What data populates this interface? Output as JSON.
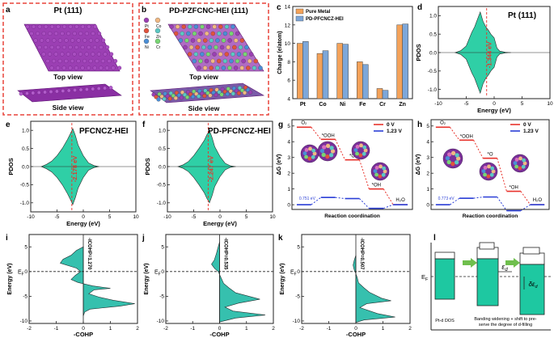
{
  "panels": {
    "a": {
      "letter": "a",
      "title": "Pt (111)",
      "view_top": "Top view",
      "view_side": "Side view",
      "colors": {
        "dash_border": "#e8443a",
        "atom": "#9b3fb3",
        "atom_dark": "#5e1673"
      }
    },
    "b": {
      "letter": "b",
      "title": "PD-PZFCNC-HEI (111)",
      "view_top": "Top view",
      "view_side": "Side view",
      "legend": [
        {
          "el": "Pt",
          "color": "#9b3fb3"
        },
        {
          "el": "Co",
          "color": "#f0b882"
        },
        {
          "el": "Fe",
          "color": "#e0533d"
        },
        {
          "el": "Zn",
          "color": "#5bc8c3"
        },
        {
          "el": "Ni",
          "color": "#4a8ed6"
        },
        {
          "el": "Cr",
          "color": "#78d673"
        }
      ]
    },
    "c": {
      "letter": "c",
      "chart_data": {
        "type": "bar",
        "categories": [
          "Pt",
          "Co",
          "Ni",
          "Fe",
          "Cr",
          "Zn"
        ],
        "series": [
          {
            "name": "Pure Metal",
            "values": [
              10.0,
              8.9,
              10.0,
              8.0,
              5.1,
              12.0
            ],
            "color": "#f4a259"
          },
          {
            "name": "PD-PFCNCZ-HEI",
            "values": [
              10.2,
              9.2,
              9.9,
              7.7,
              4.9,
              12.1
            ],
            "color": "#7da7d9"
          }
        ],
        "ylabel": "Charge (e/atom)",
        "ylim": [
          4,
          14
        ],
        "yticks": [
          "4",
          "6",
          "8",
          "10",
          "12",
          "14"
        ]
      }
    },
    "d": {
      "letter": "d",
      "chart_data": {
        "type": "area",
        "title": "Pt (111)",
        "xlabel": "Energy (eV)",
        "ylabel": "PDOS",
        "xlim": [
          -10,
          10
        ],
        "ylim": [
          -1.25,
          1.25
        ],
        "xticks": [
          "-10",
          "-5",
          "0",
          "5",
          "10"
        ],
        "yticks": [
          "1.0",
          "0.5",
          "0.0",
          "-0.5",
          "-1.0"
        ],
        "d_band_center": -1.344,
        "annotation": "-1.344 eV",
        "profile": [
          [
            -7,
            0
          ],
          [
            -6,
            0.05
          ],
          [
            -5,
            0.18
          ],
          [
            -4,
            0.55
          ],
          [
            -3.5,
            0.7
          ],
          [
            -3,
            0.9
          ],
          [
            -2.5,
            1.1
          ],
          [
            -2,
            0.85
          ],
          [
            -1.5,
            0.7
          ],
          [
            -1,
            0.6
          ],
          [
            -0.6,
            0.5
          ],
          [
            0,
            0.4
          ],
          [
            0.5,
            0.12
          ],
          [
            1,
            0.04
          ],
          [
            2,
            0.01
          ],
          [
            3,
            0
          ]
        ]
      }
    },
    "e": {
      "letter": "e",
      "chart_data": {
        "type": "area",
        "title": "PFCNCZ-HEI",
        "xlabel": "Energy (eV)",
        "ylabel": "PDOS",
        "xlim": [
          -10,
          10
        ],
        "ylim": [
          -1.25,
          1.25
        ],
        "xticks": [
          "-10",
          "-5",
          "0",
          "5",
          "10"
        ],
        "yticks": [
          "1.0",
          "0.5",
          "0.0",
          "-0.5",
          "-1.0"
        ],
        "d_band_center": -2.178,
        "annotation": "-2.178 eV",
        "profile": [
          [
            -8,
            0
          ],
          [
            -7,
            0.06
          ],
          [
            -6,
            0.15
          ],
          [
            -5,
            0.3
          ],
          [
            -4,
            0.5
          ],
          [
            -3,
            0.75
          ],
          [
            -2.5,
            0.9
          ],
          [
            -2,
            1.05
          ],
          [
            -1.5,
            0.85
          ],
          [
            -1,
            0.6
          ],
          [
            0,
            0.3
          ],
          [
            1,
            0.1
          ],
          [
            2,
            0.03
          ],
          [
            3,
            0
          ]
        ]
      }
    },
    "f": {
      "letter": "f",
      "chart_data": {
        "type": "area",
        "title": "PD-PFCNCZ-HEI",
        "xlabel": "Energy (eV)",
        "ylabel": "PDOS",
        "xlim": [
          -10,
          10
        ],
        "ylim": [
          -1.25,
          1.25
        ],
        "xticks": [
          "-10",
          "-5",
          "0",
          "5",
          "10"
        ],
        "yticks": [
          "1.0",
          "0.5",
          "0.0",
          "-0.5",
          "-1.0"
        ],
        "d_band_center": -2.247,
        "annotation": "-2.247 eV",
        "profile": [
          [
            -8,
            0
          ],
          [
            -7,
            0.05
          ],
          [
            -6,
            0.14
          ],
          [
            -5,
            0.3
          ],
          [
            -4,
            0.5
          ],
          [
            -3,
            0.72
          ],
          [
            -2.5,
            0.88
          ],
          [
            -2,
            1.0
          ],
          [
            -1.5,
            0.8
          ],
          [
            -1,
            0.55
          ],
          [
            0,
            0.28
          ],
          [
            1,
            0.09
          ],
          [
            2,
            0.02
          ],
          [
            3,
            0
          ]
        ]
      }
    },
    "g": {
      "letter": "g",
      "chart_data": {
        "type": "line",
        "xlabel": "Reaction coordination",
        "ylabel": "ΔG (eV)",
        "ylim": [
          -0.3,
          5.4
        ],
        "yticks": [
          "0",
          "1",
          "2",
          "3",
          "4",
          "5"
        ],
        "legend": [
          "0 V",
          "1.23 V"
        ],
        "steps": [
          "O₂",
          "*OOH",
          "*O",
          "*OH",
          "H₂O"
        ],
        "series": [
          {
            "name": "0 V",
            "color": "#e8332c",
            "values": [
              4.92,
              4.15,
              2.85,
              1.0,
              0.0
            ]
          },
          {
            "name": "1.23 V",
            "color": "#2b3fd6",
            "values": [
              0.0,
              0.46,
              0.39,
              -0.23,
              0.0
            ]
          }
        ],
        "annotation": "0.751 eV"
      }
    },
    "h": {
      "letter": "h",
      "chart_data": {
        "type": "line",
        "xlabel": "Reaction coordination",
        "ylabel": "ΔG (eV)",
        "ylim": [
          -0.3,
          5.4
        ],
        "yticks": [
          "0",
          "1",
          "2",
          "3",
          "4",
          "5"
        ],
        "legend": [
          "0 V",
          "1.23 V"
        ],
        "steps": [
          "O₂",
          "*OOH",
          "*O",
          "*OH",
          "H₂O"
        ],
        "series": [
          {
            "name": "0 V",
            "color": "#e8332c",
            "values": [
              4.92,
              4.1,
              2.95,
              0.85,
              0.0
            ]
          },
          {
            "name": "1.23 V",
            "color": "#2b3fd6",
            "values": [
              0.0,
              0.41,
              0.49,
              -0.38,
              0.0
            ]
          }
        ],
        "annotation": "0.773 eV"
      }
    },
    "i": {
      "letter": "i",
      "chart_data": {
        "type": "area",
        "orientation": "horizontal",
        "xlabel": "-COHP",
        "ylabel": "Energy (eV)",
        "xlim": [
          -2,
          2
        ],
        "ylim": [
          -10.5,
          7.5
        ],
        "xticks": [
          "-2",
          "-1",
          "0",
          "1",
          "2"
        ],
        "yticks": [
          "5",
          "0",
          "-5",
          "-10"
        ],
        "fermi_label": "E",
        "fermi_sub": "F",
        "annotation": "-ICOHP=1.270",
        "profile": [
          [
            5,
            0
          ],
          [
            4.3,
            -0.25
          ],
          [
            3.3,
            -0.45
          ],
          [
            2.5,
            -0.75
          ],
          [
            1.7,
            -0.85
          ],
          [
            0.7,
            -0.25
          ],
          [
            0,
            -0.1
          ],
          [
            -0.8,
            -0.3
          ],
          [
            -1.6,
            -0.45
          ],
          [
            -2.2,
            -0.2
          ],
          [
            -2.9,
            0.35
          ],
          [
            -3.4,
            1.0
          ],
          [
            -3.7,
            0.4
          ],
          [
            -4.5,
            0.2
          ],
          [
            -5.2,
            0.6
          ],
          [
            -5.8,
            1.1
          ],
          [
            -6.5,
            1.9
          ],
          [
            -7.0,
            1.35
          ],
          [
            -7.6,
            0.25
          ],
          [
            -8.2,
            0.05
          ],
          [
            -9,
            0
          ]
        ]
      }
    },
    "j": {
      "letter": "j",
      "chart_data": {
        "type": "area",
        "orientation": "horizontal",
        "xlabel": "-COHP",
        "ylabel": "Energy (eV)",
        "xlim": [
          -2,
          2
        ],
        "ylim": [
          -10.5,
          7.5
        ],
        "xticks": [
          "-2",
          "-1",
          "0",
          "1",
          "2"
        ],
        "yticks": [
          "5",
          "0",
          "-5",
          "-10"
        ],
        "fermi_label": "E",
        "fermi_sub": "F",
        "annotation": "-ICOHP=0.535",
        "profile": [
          [
            6,
            0
          ],
          [
            5,
            -0.05
          ],
          [
            3.6,
            -0.12
          ],
          [
            2.3,
            -0.2
          ],
          [
            1.5,
            -0.3
          ],
          [
            0.6,
            -0.18
          ],
          [
            0,
            -0.05
          ],
          [
            -1.2,
            0.05
          ],
          [
            -2.4,
            0.15
          ],
          [
            -3.3,
            0.35
          ],
          [
            -4.3,
            0.6
          ],
          [
            -5.6,
            1.5
          ],
          [
            -6.4,
            0.7
          ],
          [
            -7.2,
            0.2
          ],
          [
            -8.0,
            0.5
          ],
          [
            -8.8,
            1.7
          ],
          [
            -9.4,
            0.6
          ],
          [
            -10.2,
            0
          ]
        ]
      }
    },
    "k": {
      "letter": "k",
      "chart_data": {
        "type": "area",
        "orientation": "horizontal",
        "xlabel": "-COHP",
        "ylabel": "Energy (eV)",
        "xlim": [
          -2,
          2
        ],
        "ylim": [
          -10.5,
          7.5
        ],
        "xticks": [
          "-2",
          "-1",
          "0",
          "1",
          "2"
        ],
        "yticks": [
          "5",
          "0",
          "-5",
          "-10"
        ],
        "fermi_label": "E",
        "fermi_sub": "F",
        "annotation": "-ICOHP=0.507",
        "profile": [
          [
            3.3,
            0
          ],
          [
            2.3,
            -0.06
          ],
          [
            1.3,
            -0.1
          ],
          [
            0.5,
            -0.07
          ],
          [
            0,
            -0.03
          ],
          [
            -1.2,
            0.05
          ],
          [
            -2.3,
            0.1
          ],
          [
            -3.3,
            0.3
          ],
          [
            -4.2,
            0.5
          ],
          [
            -5.4,
            0.95
          ],
          [
            -5.9,
            1.3
          ],
          [
            -6.5,
            0.4
          ],
          [
            -7.3,
            0.15
          ],
          [
            -8.5,
            0.8
          ],
          [
            -9.2,
            1.45
          ],
          [
            -9.8,
            0.3
          ],
          [
            -10.3,
            0
          ]
        ]
      }
    },
    "l": {
      "letter": "l",
      "fermi_label": "E",
      "fermi_sub": "F",
      "ed_label": "ε",
      "ed_sub": "d",
      "ded_label": "δε",
      "ded_sub": "d",
      "caption_1": "Pt-d DOS",
      "caption_2": "Banding widening + shift to pre-",
      "caption_3": "serve the degree of d-filling",
      "colors": {
        "fill": "#1ec8a1",
        "arrow": "#6fbf4d"
      }
    }
  },
  "colors": {
    "pdos_fill": "#2fcfa6",
    "cohp_fill": "#36c0ae",
    "outline": "#222222",
    "dcenter_line": "#e8332c",
    "annotation": "#e8332c",
    "ball_pink": "#d66fbf"
  }
}
